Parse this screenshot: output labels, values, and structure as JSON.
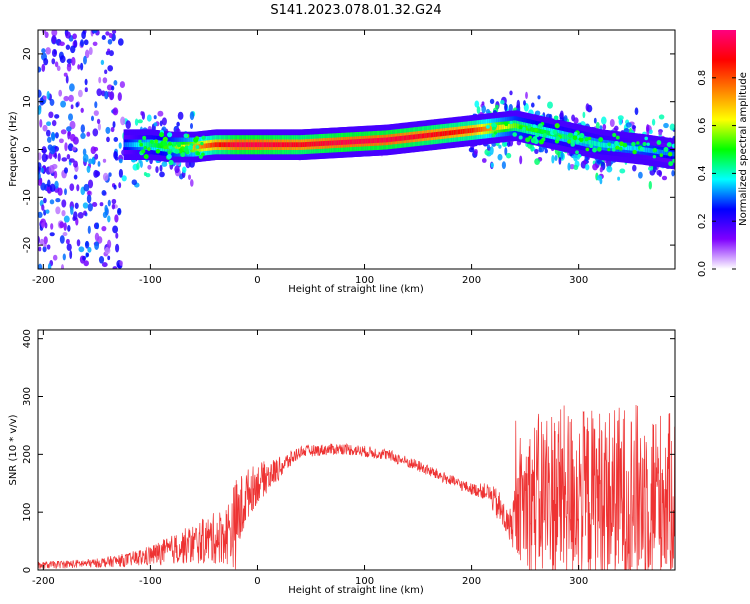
{
  "figure": {
    "title": "S141.2023.078.01.32.G24"
  },
  "chart_data": [
    {
      "type": "heatmap",
      "xlabel": "Height of straight line (km)",
      "ylabel": "Frequency (Hz)",
      "xlim": [
        -205,
        390
      ],
      "ylim": [
        -25,
        25
      ],
      "x_ticks": [
        -200,
        -100,
        0,
        100,
        200,
        300
      ],
      "y_ticks": [
        -20,
        -10,
        0,
        10,
        20
      ],
      "colorbar": {
        "label": "Normalized spectral amplitude",
        "range": [
          0,
          1
        ],
        "ticks": [
          "0.0",
          "0.2",
          "0.4",
          "0.6",
          "0.8"
        ],
        "colormap": [
          "#ffffff",
          "#7f00ff",
          "#0000ff",
          "#00ffff",
          "#00ff00",
          "#ffff00",
          "#ff7f00",
          "#ff0000",
          "#ff007f"
        ]
      },
      "ridge": {
        "x": [
          -125,
          -100,
          -80,
          -60,
          -40,
          -20,
          0,
          40,
          80,
          120,
          160,
          200,
          240,
          280,
          320,
          360,
          390
        ],
        "freq": [
          1,
          1,
          0.5,
          0.5,
          1,
          1,
          1,
          1,
          1.5,
          2,
          3,
          4,
          5,
          3,
          1,
          0,
          -1
        ],
        "peak_amplitude": [
          0.3,
          0.45,
          0.55,
          0.7,
          0.85,
          0.95,
          0.95,
          0.9,
          0.95,
          0.95,
          0.9,
          0.85,
          0.55,
          0.45,
          0.4,
          0.35,
          0.3
        ]
      },
      "grid": false,
      "legend": "colorbar-right"
    },
    {
      "type": "line",
      "xlabel": "Height of straight line (km)",
      "ylabel": "SNR (10 * v/v)",
      "xlim": [
        -205,
        390
      ],
      "ylim": [
        0,
        415
      ],
      "x_ticks": [
        -200,
        -100,
        0,
        100,
        200,
        300
      ],
      "y_ticks": [
        0,
        100,
        200,
        300,
        400
      ],
      "color": "#ee3333",
      "envelope": {
        "x": [
          -205,
          -150,
          -120,
          -100,
          -80,
          -60,
          -40,
          -30,
          -20,
          -10,
          0,
          20,
          40,
          80,
          120,
          150,
          180,
          200,
          215,
          225,
          235,
          250,
          270,
          300,
          330,
          360,
          390
        ],
        "mean": [
          8,
          12,
          18,
          25,
          35,
          45,
          55,
          60,
          80,
          130,
          150,
          175,
          205,
          210,
          200,
          180,
          155,
          140,
          135,
          110,
          75,
          120,
          130,
          130,
          125,
          130,
          130
        ],
        "spread": [
          6,
          8,
          12,
          18,
          25,
          35,
          45,
          50,
          80,
          45,
          35,
          20,
          10,
          10,
          10,
          10,
          10,
          10,
          15,
          30,
          25,
          120,
          160,
          150,
          160,
          160,
          140
        ]
      },
      "grid": false,
      "legend": "none"
    }
  ]
}
